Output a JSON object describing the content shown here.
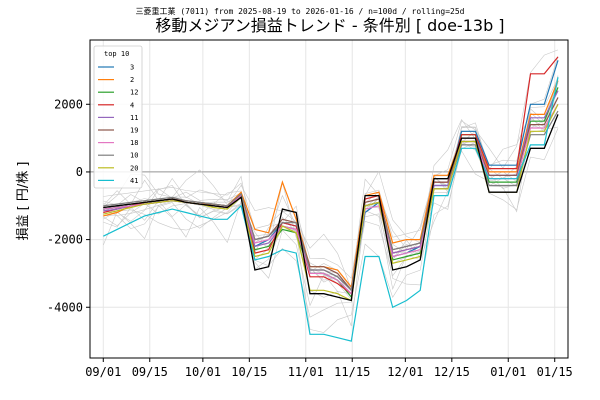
{
  "chart_data": {
    "type": "line",
    "supertitle": "三菱重工業 (7011) from 2025-08-19 to 2026-01-16 / n=100d / rolling=25d",
    "title": "移動メジアン損益トレンド - 条件別 [ doe-13b ]",
    "xlabel": "",
    "ylabel": "損益 [ 円/株 ]",
    "x_start": "2025-09-01",
    "x_end": "2026-01-16",
    "xlim": [
      "2025-08-28",
      "2026-01-19"
    ],
    "ylim": [
      -5500,
      3900
    ],
    "x_ticks": [
      "2025-09-01",
      "2025-09-15",
      "2025-10-01",
      "2025-10-15",
      "2025-11-01",
      "2025-11-15",
      "2025-12-01",
      "2025-12-15",
      "2026-01-01",
      "2026-01-15"
    ],
    "x_tick_labels": [
      "09/01",
      "09/15",
      "10/01",
      "10/15",
      "11/01",
      "11/15",
      "12/01",
      "12/15",
      "01/01",
      "01/15"
    ],
    "y_ticks": [
      -4000,
      -2000,
      0,
      2000
    ],
    "y_tick_labels": [
      "-4000",
      "-2000",
      "0",
      "2000"
    ],
    "grid": true,
    "zero_line": true,
    "legend_title": "top 10",
    "legend_position": "upper left",
    "series": [
      {
        "name": "3",
        "color": "#1f77b4",
        "values": [
          -1100,
          -1050,
          -1000,
          -950,
          -900,
          -850,
          -900,
          -950,
          -1000,
          -1050,
          -700,
          -2200,
          -2000,
          -1500,
          -1600,
          -3000,
          -3000,
          -3200,
          -3600,
          -1200,
          -900,
          -2500,
          -2400,
          -2200,
          -400,
          -400,
          1200,
          1200,
          200,
          200,
          200,
          2000,
          2000,
          3300
        ]
      },
      {
        "name": "2",
        "color": "#ff7f0e",
        "values": [
          -1300,
          -1200,
          -1000,
          -900,
          -850,
          -800,
          -900,
          -950,
          -950,
          -1000,
          -600,
          -1700,
          -1800,
          -300,
          -1400,
          -2800,
          -2800,
          -2900,
          -3400,
          -700,
          -600,
          -2100,
          -2000,
          -2000,
          -100,
          -100,
          1000,
          1000,
          0,
          0,
          0,
          1700,
          1700,
          2700
        ]
      },
      {
        "name": "12",
        "color": "#2ca02c",
        "values": [
          -1100,
          -1050,
          -1000,
          -900,
          -850,
          -800,
          -900,
          -950,
          -1000,
          -1050,
          -700,
          -2300,
          -2200,
          -1700,
          -1800,
          -3000,
          -3000,
          -3200,
          -3700,
          -1000,
          -900,
          -2600,
          -2500,
          -2400,
          -500,
          -500,
          1100,
          1100,
          -300,
          -300,
          -300,
          1500,
          1500,
          2500
        ]
      },
      {
        "name": "4",
        "color": "#d62728",
        "values": [
          -1200,
          -1100,
          -1000,
          -900,
          -850,
          -800,
          -900,
          -950,
          -1000,
          -1050,
          -700,
          -2400,
          -2300,
          -1500,
          -1600,
          -3100,
          -3100,
          -3300,
          -3600,
          -800,
          -700,
          -2400,
          -2300,
          -2200,
          -300,
          -300,
          1100,
          1100,
          100,
          100,
          100,
          2900,
          2900,
          3400
        ]
      },
      {
        "name": "11",
        "color": "#9467bd",
        "values": [
          -1150,
          -1100,
          -1000,
          -950,
          -900,
          -850,
          -900,
          -950,
          -1000,
          -1050,
          -750,
          -2200,
          -2100,
          -1600,
          -1700,
          -2900,
          -2900,
          -3100,
          -3500,
          -1000,
          -900,
          -2400,
          -2300,
          -2200,
          -400,
          -400,
          1000,
          1000,
          -100,
          -100,
          -100,
          1600,
          1600,
          2400
        ]
      },
      {
        "name": "19",
        "color": "#8c564b",
        "values": [
          -1050,
          -1000,
          -950,
          -900,
          -850,
          -800,
          -850,
          -900,
          -950,
          -1000,
          -650,
          -2000,
          -1900,
          -1400,
          -1500,
          -2800,
          -2800,
          -3000,
          -3500,
          -900,
          -800,
          -2300,
          -2200,
          -2100,
          -300,
          -300,
          900,
          900,
          -100,
          -100,
          -100,
          1400,
          1400,
          2200
        ]
      },
      {
        "name": "18",
        "color": "#e377c2",
        "values": [
          -1100,
          -1050,
          -1000,
          -950,
          -900,
          -850,
          -900,
          -950,
          -1000,
          -1050,
          -700,
          -2100,
          -2000,
          -1600,
          -1700,
          -3000,
          -3000,
          -3200,
          -3600,
          -1100,
          -1000,
          -2500,
          -2400,
          -2300,
          -500,
          -500,
          900,
          900,
          -200,
          -200,
          -200,
          1300,
          1300,
          2000
        ]
      },
      {
        "name": "10",
        "color": "#7f7f7f",
        "values": [
          -1000,
          -950,
          -900,
          -850,
          -800,
          -750,
          -850,
          -900,
          -950,
          -1000,
          -650,
          -2000,
          -1900,
          -1500,
          -1500,
          -2900,
          -2900,
          -3100,
          -3500,
          -1000,
          -900,
          -2300,
          -2200,
          -2100,
          -500,
          -500,
          800,
          800,
          -400,
          -400,
          -400,
          1100,
          1100,
          1800
        ]
      },
      {
        "name": "20",
        "color": "#bcbd22",
        "values": [
          -1250,
          -1150,
          -1050,
          -950,
          -900,
          -850,
          -900,
          -950,
          -1050,
          -1100,
          -750,
          -2500,
          -2400,
          -1600,
          -1800,
          -3500,
          -3500,
          -3600,
          -3800,
          -1000,
          -900,
          -2700,
          -2600,
          -2500,
          -500,
          -500,
          900,
          900,
          -600,
          -600,
          -600,
          1200,
          1200,
          2000
        ]
      },
      {
        "name": "41",
        "color": "#17becf",
        "values": [
          -1900,
          -1700,
          -1500,
          -1300,
          -1200,
          -1100,
          -1200,
          -1300,
          -1400,
          -1400,
          -1000,
          -2600,
          -2500,
          -2300,
          -2400,
          -4800,
          -4800,
          -4900,
          -5000,
          -2500,
          -2500,
          -4000,
          -3800,
          -3500,
          -700,
          -700,
          700,
          700,
          -200,
          -200,
          -200,
          800,
          800,
          2800
        ]
      }
    ],
    "median": {
      "color": "#000000",
      "values": [
        -1050,
        -1000,
        -950,
        -900,
        -850,
        -800,
        -900,
        -950,
        -1000,
        -1050,
        -750,
        -2900,
        -2800,
        -1100,
        -1200,
        -3600,
        -3600,
        -3700,
        -3800,
        -700,
        -700,
        -2900,
        -2800,
        -2600,
        -200,
        -200,
        1000,
        1000,
        -600,
        -600,
        -600,
        700,
        700,
        1700
      ]
    }
  }
}
